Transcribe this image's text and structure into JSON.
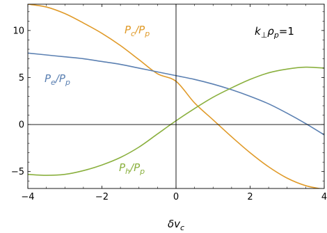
{
  "chart_data": {
    "type": "line",
    "title": "",
    "xlabel": "δv_c",
    "ylabel": "",
    "xlim": [
      -4,
      4
    ],
    "ylim": [
      -6.8,
      12.8
    ],
    "grid": false,
    "x_ticks": [
      -4,
      -2,
      0,
      2,
      4
    ],
    "x_tick_labels": [
      "−4",
      "−2",
      "0",
      "2",
      "4"
    ],
    "y_ticks": [
      -5,
      0,
      5,
      10
    ],
    "y_tick_labels": [
      "−5",
      "0",
      "5",
      "10"
    ],
    "annotation": {
      "pre": "k",
      "sub1": "⊥",
      "mid": "ρ",
      "sub2": "p",
      "post": "=1"
    },
    "series": [
      {
        "name": "Pc/Pp",
        "label": {
          "main": "P",
          "sub": "c",
          "sep": "/P",
          "sub2": "p"
        },
        "color": "#E09A28",
        "x": [
          -4,
          -3.5,
          -3,
          -2.5,
          -2,
          -1.5,
          -1,
          -0.5,
          0,
          0.5,
          1,
          1.5,
          2,
          2.5,
          3,
          3.5,
          4
        ],
        "y": [
          12.8,
          12.5,
          11.8,
          10.8,
          9.7,
          8.4,
          6.9,
          5.4,
          4.6,
          2.3,
          0.5,
          -1.3,
          -3,
          -4.5,
          -5.7,
          -6.5,
          -6.9
        ]
      },
      {
        "name": "Pe/Pp",
        "label": {
          "main": "P",
          "sub": "e",
          "sep": "/P",
          "sub2": "p"
        },
        "color": "#5B80B2",
        "x": [
          -4,
          -3.5,
          -3,
          -2.5,
          -2,
          -1.5,
          -1,
          -0.5,
          0,
          0.5,
          1,
          1.5,
          2,
          2.5,
          3,
          3.5,
          4
        ],
        "y": [
          7.6,
          7.4,
          7.2,
          7.0,
          6.7,
          6.4,
          6.0,
          5.6,
          5.2,
          4.8,
          4.3,
          3.7,
          3.0,
          2.2,
          1.2,
          0.1,
          -1.1
        ]
      },
      {
        "name": "Ph/Pp",
        "label": {
          "main": "P",
          "sub": "h",
          "sep": "/P",
          "sub2": "p"
        },
        "color": "#8AB03E",
        "x": [
          -4,
          -3.5,
          -3,
          -2.5,
          -2,
          -1.5,
          -1,
          -0.5,
          0,
          0.5,
          1,
          1.5,
          2,
          2.5,
          3,
          3.5,
          4
        ],
        "y": [
          -5.3,
          -5.4,
          -5.3,
          -4.9,
          -4.3,
          -3.5,
          -2.4,
          -1.0,
          0.4,
          1.7,
          2.9,
          3.9,
          4.8,
          5.5,
          5.9,
          6.1,
          6.0
        ]
      }
    ]
  }
}
